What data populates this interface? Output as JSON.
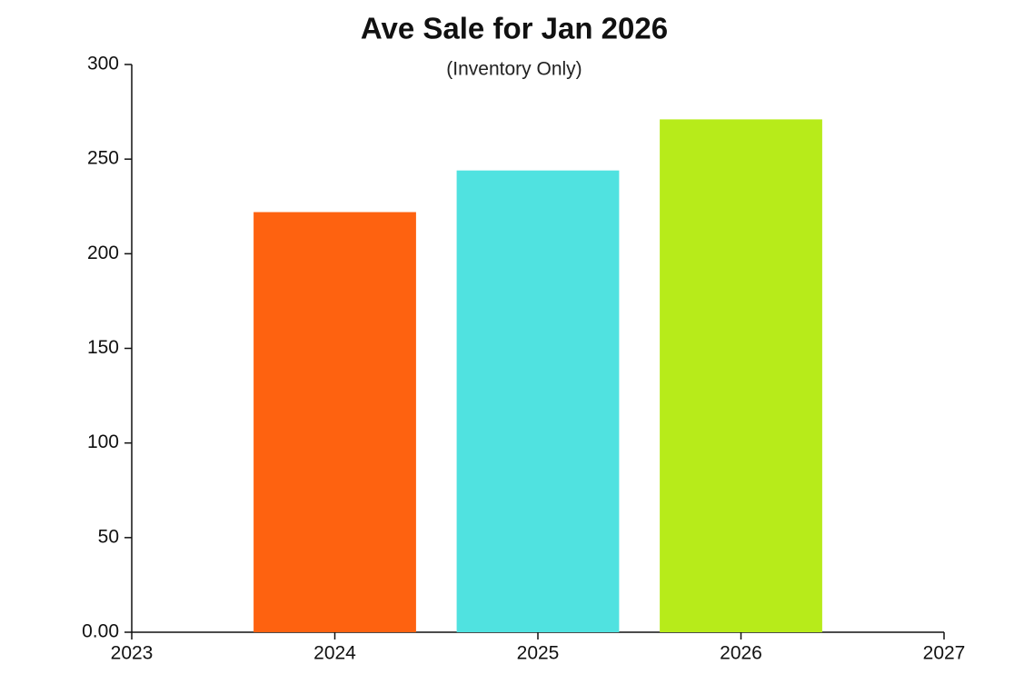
{
  "chart_data": {
    "type": "bar",
    "title": "Ave Sale for Jan 2026",
    "subtitle": "(Inventory Only)",
    "x": [
      2024,
      2025,
      2026
    ],
    "values": [
      222,
      244,
      271
    ],
    "colors": [
      "#fe6210",
      "#50e2e0",
      "#b7eb1a"
    ],
    "xlim": [
      2023,
      2027
    ],
    "xticks": [
      2023,
      2024,
      2025,
      2026,
      2027
    ],
    "ylim": [
      0,
      300
    ],
    "yticks": [
      {
        "value": 0,
        "label": "0.00"
      },
      50,
      100,
      150,
      200,
      250,
      300
    ],
    "grid": false
  }
}
